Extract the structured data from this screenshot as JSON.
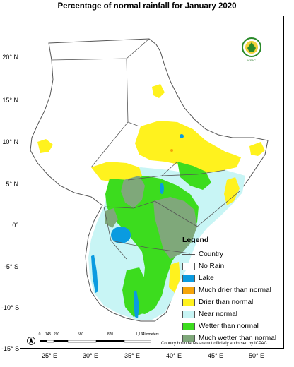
{
  "title": "Percentage of normal rainfall for  January 2020",
  "latitude_labels": [
    "20° N",
    "15° N",
    "10° N",
    "5° N",
    "0°",
    "-5° S",
    "-10° S",
    "-15° S"
  ],
  "longitude_labels": [
    "25° E",
    "30° E",
    "35° E",
    "40° E",
    "45° E",
    "50° E"
  ],
  "legend": {
    "title": "Legend",
    "items": [
      {
        "label": "Country",
        "kind": "line",
        "color": "#555555"
      },
      {
        "label": "No Rain",
        "kind": "fill",
        "color": "#ffffff"
      },
      {
        "label": "Lake",
        "kind": "fill",
        "color": "#0a9be0"
      },
      {
        "label": "Much drier than normal",
        "kind": "fill",
        "color": "#f5a50a"
      },
      {
        "label": "Drier than normal",
        "kind": "fill",
        "color": "#fff21e"
      },
      {
        "label": "Near normal",
        "kind": "fill",
        "color": "#c8f5f5"
      },
      {
        "label": "Wetter than normal",
        "kind": "fill",
        "color": "#3cdc1e"
      },
      {
        "label": "Much wetter than normal",
        "kind": "fill",
        "color": "#7fa87a"
      }
    ]
  },
  "scale": {
    "ticks": [
      "0",
      "145",
      "290",
      "580",
      "870",
      "1,160"
    ],
    "unit": "Kilometers"
  },
  "disclaimer": "Country boundaries are not officially endorsed by ICPAC",
  "logo_text": "ICPAC",
  "colors": {
    "no_rain": "#ffffff",
    "lake": "#0a9be0",
    "much_drier": "#f5a50a",
    "drier": "#fff21e",
    "near_normal": "#c8f5f5",
    "wetter": "#3cdc1e",
    "much_wetter": "#7fa87a",
    "border": "#555555"
  }
}
